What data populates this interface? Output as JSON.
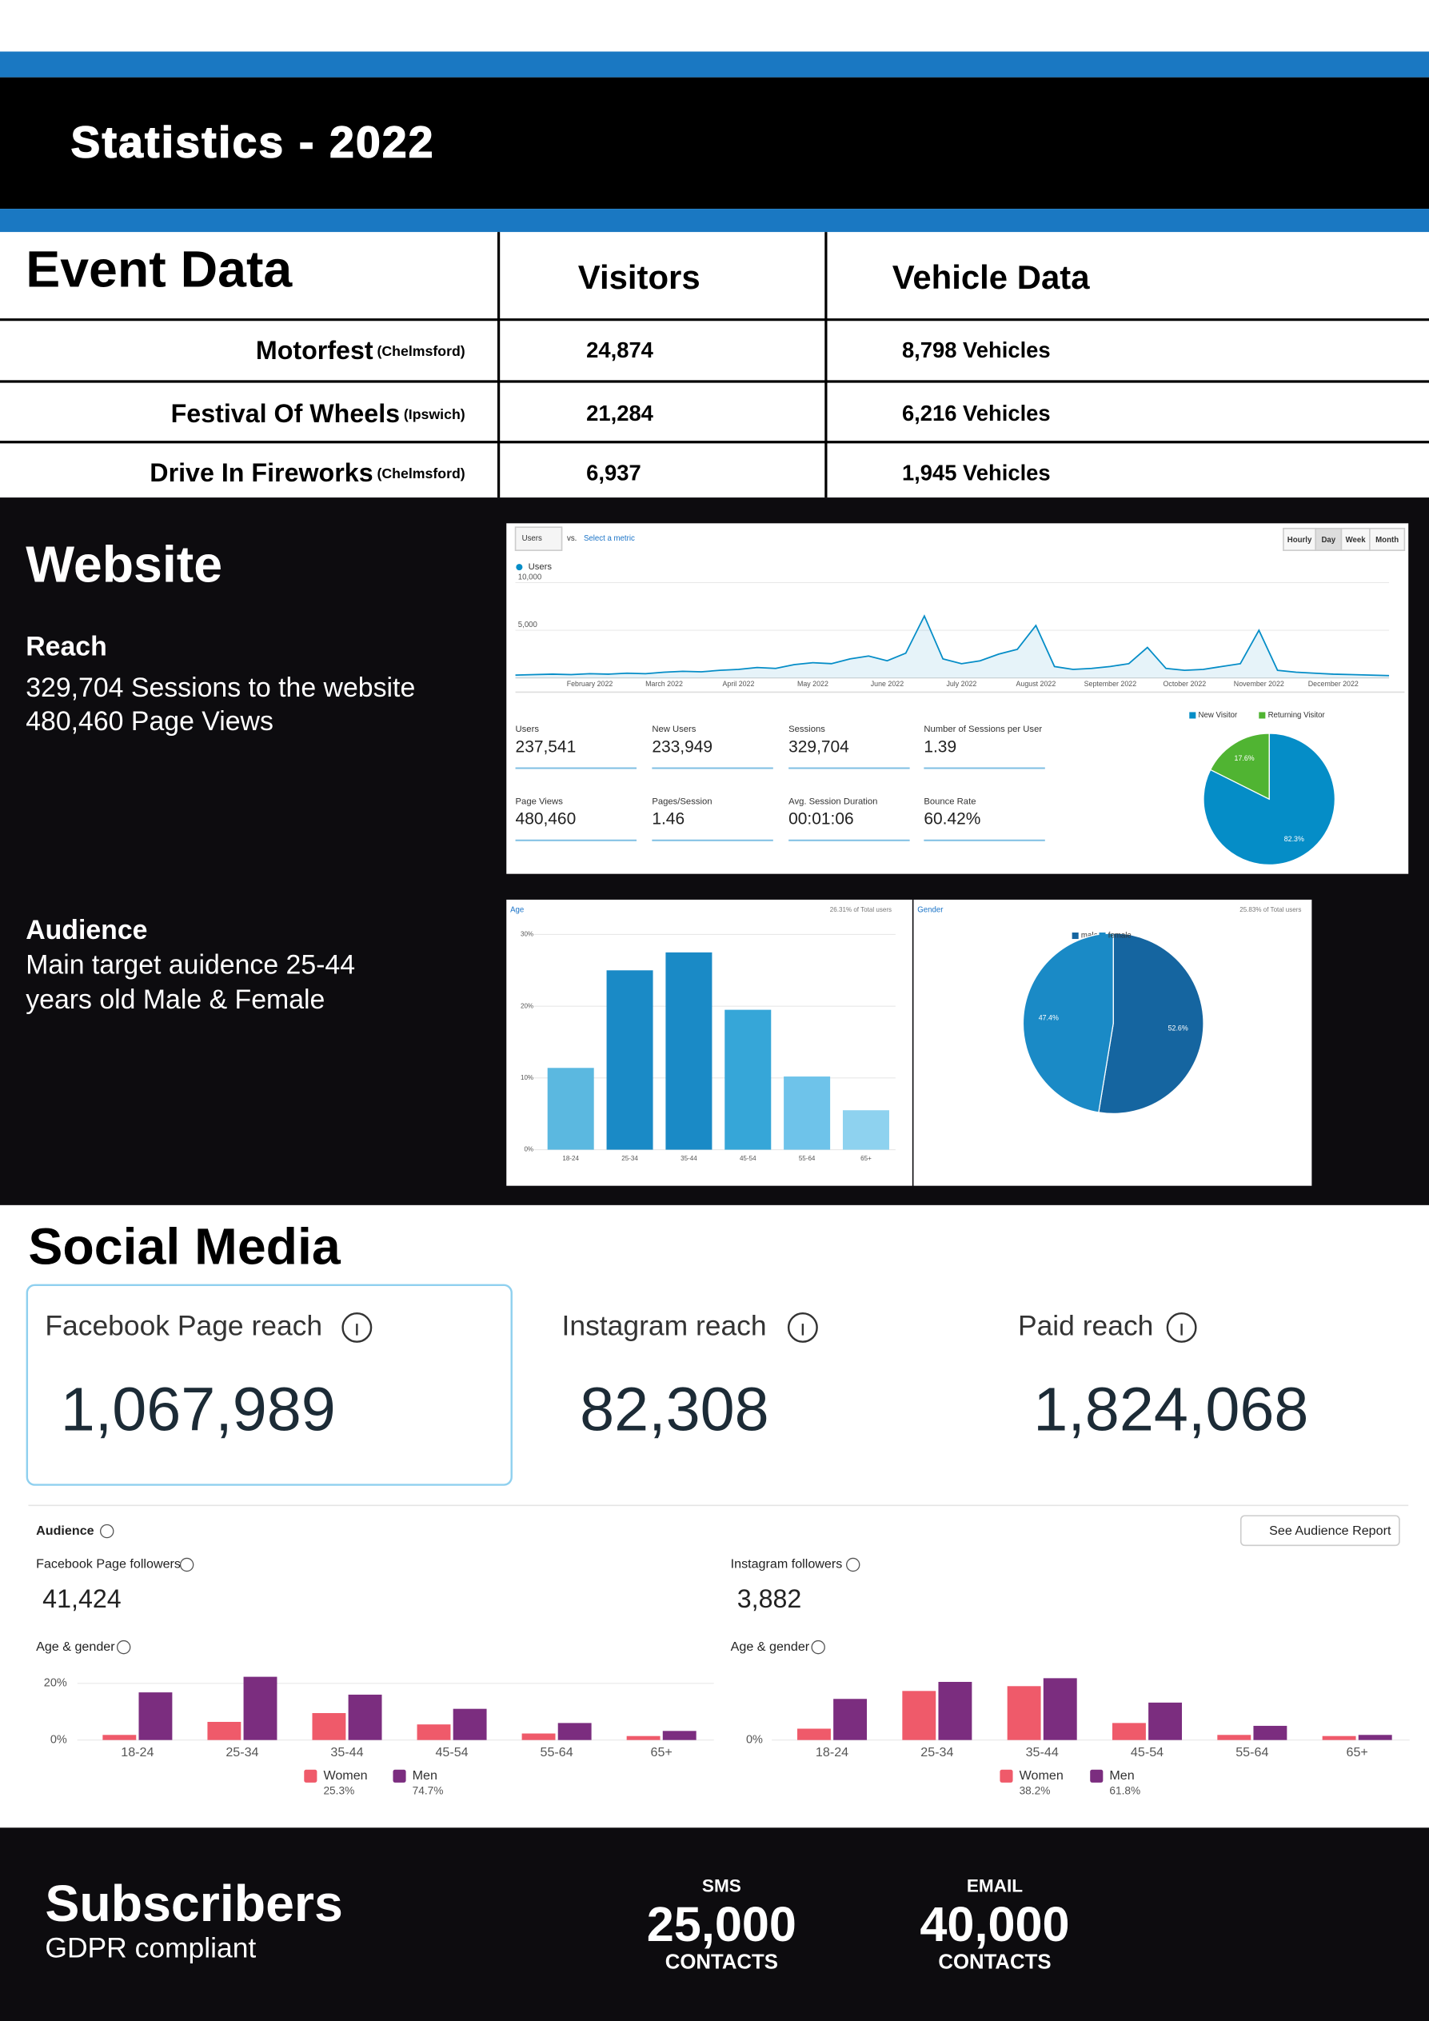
{
  "header": {
    "title": "Statistics - 2022"
  },
  "events": {
    "heading": "Event Data",
    "columns": [
      "Visitors",
      "Vehicle Data"
    ],
    "rows": [
      {
        "name": "Motorfest",
        "place": "(Chelmsford)",
        "visitors": "24,874",
        "vehicles": "8,798 Vehicles"
      },
      {
        "name": "Festival Of Wheels",
        "place": "(Ipswich)",
        "visitors": "21,284",
        "vehicles": "6,216 Vehicles"
      },
      {
        "name": "Drive In Fireworks",
        "place": "(Chelmsford)",
        "visitors": "6,937",
        "vehicles": "1,945 Vehicles"
      }
    ]
  },
  "website": {
    "heading": "Website",
    "reach": {
      "title": "Reach",
      "lines": [
        "329,704 Sessions to the website",
        "480,460 Page Views"
      ]
    },
    "audience": {
      "title": "Audience",
      "lines": [
        "Main target auidence 25-44",
        "years old Male & Female"
      ]
    }
  },
  "analytics": {
    "metric": "Users",
    "vs": "vs.",
    "select": "Select a metric",
    "periods": [
      "Hourly",
      "Day",
      "Week",
      "Month"
    ],
    "selected_period": "Day",
    "metrics": [
      {
        "label": "Users",
        "value": "237,541"
      },
      {
        "label": "New Users",
        "value": "233,949"
      },
      {
        "label": "Sessions",
        "value": "329,704"
      },
      {
        "label": "Number of Sessions per User",
        "value": "1.39"
      },
      {
        "label": "Page Views",
        "value": "480,460"
      },
      {
        "label": "Pages/Session",
        "value": "1.46"
      },
      {
        "label": "Avg. Session Duration",
        "value": "00:01:06"
      },
      {
        "label": "Bounce Rate",
        "value": "60.42%"
      }
    ]
  },
  "chart_data": [
    {
      "type": "line",
      "categories": [
        null,
        null,
        null,
        null,
        "February 2022",
        null,
        null,
        null,
        "March 2022",
        null,
        null,
        null,
        "April 2022",
        null,
        null,
        null,
        "May 2022",
        null,
        null,
        null,
        "June 2022",
        null,
        null,
        null,
        "July 2022",
        null,
        null,
        null,
        "August 2022",
        null,
        null,
        null,
        "September 2022",
        null,
        null,
        null,
        "October 2022",
        null,
        null,
        null,
        "November 2022",
        null,
        null,
        null,
        "December 2022",
        null,
        null,
        null
      ],
      "series": [
        {
          "name": "Users",
          "color": "#058dc7",
          "values": [
            300,
            350,
            400,
            350,
            450,
            400,
            500,
            450,
            600,
            700,
            650,
            800,
            900,
            1100,
            1000,
            1400,
            1600,
            1500,
            2000,
            2300,
            1800,
            2600,
            6500,
            2000,
            1500,
            1800,
            2500,
            3000,
            5500,
            1200,
            900,
            1000,
            1200,
            1500,
            3200,
            1000,
            800,
            900,
            1200,
            1500,
            5000,
            800,
            600,
            500,
            400,
            350,
            300,
            250
          ]
        }
      ],
      "ylim": [
        0,
        10000
      ],
      "yticks": [
        {
          "value": 5000,
          "label": "5,000"
        },
        {
          "value": 10000,
          "label": "10,000"
        }
      ],
      "grid": true
    },
    {
      "type": "pie",
      "categories": [
        "New Visitor",
        "Returning Visitor"
      ],
      "values": [
        82.3,
        17.6
      ],
      "value_labels": [
        "82.3%",
        "17.6%"
      ],
      "colors": [
        "#058dc7",
        "#50b432"
      ]
    },
    {
      "type": "bar",
      "title": "Age",
      "subtitle": "26.31% of Total users",
      "categories": [
        "18-24",
        "25-34",
        "35-44",
        "45-54",
        "55-64",
        "65+"
      ],
      "values": [
        11.4,
        25,
        27.5,
        19.5,
        10.2,
        5.5
      ],
      "colors": [
        "#5bb8e0",
        "#1a8ac6",
        "#1a8ac6",
        "#36a6d8",
        "#6ec3ea",
        "#8ed2ef"
      ],
      "ylim": [
        0,
        30
      ],
      "yticks": [
        {
          "value": 0,
          "label": "0%"
        },
        {
          "value": 10,
          "label": "10%"
        },
        {
          "value": 20,
          "label": "20%"
        },
        {
          "value": 30,
          "label": "30%"
        }
      ],
      "grid": true
    },
    {
      "type": "pie",
      "title": "Gender",
      "subtitle": "25.83% of Total users",
      "categories": [
        "male",
        "female"
      ],
      "values": [
        52.6,
        47.4
      ],
      "value_labels": [
        "52.6%",
        "47.4%"
      ],
      "colors": [
        "#1565a0",
        "#1a8ac6"
      ]
    },
    {
      "type": "bar",
      "categories": [
        "18-24",
        "25-34",
        "35-44",
        "45-54",
        "55-64",
        "65+"
      ],
      "series": [
        {
          "name": "Women",
          "share": "25.3%",
          "color": "#ef5a6a",
          "values": [
            1.8,
            6.4,
            9.5,
            5.5,
            2.3,
            1.4
          ]
        },
        {
          "name": "Men",
          "share": "74.7%",
          "color": "#7b2d7f",
          "values": [
            16.8,
            22.3,
            16,
            11,
            6,
            3.2
          ]
        }
      ],
      "ylim": [
        0,
        25
      ],
      "yticks": [
        {
          "value": 0,
          "label": "0%"
        },
        {
          "value": 20,
          "label": "20%"
        }
      ],
      "grid": true
    },
    {
      "type": "bar",
      "categories": [
        "18-24",
        "25-34",
        "35-44",
        "45-54",
        "55-64",
        "65+"
      ],
      "series": [
        {
          "name": "Women",
          "share": "38.2%",
          "color": "#ef5a6a",
          "values": [
            4,
            17.3,
            19,
            6,
            1.8,
            1.4
          ]
        },
        {
          "name": "Men",
          "share": "61.8%",
          "color": "#7b2d7f",
          "values": [
            14.5,
            20.5,
            21.8,
            13.2,
            5,
            1.8
          ]
        }
      ],
      "ylim": [
        0,
        25
      ],
      "yticks": [
        {
          "value": 0,
          "label": "0%"
        }
      ],
      "grid": true
    }
  ],
  "social": {
    "heading": "Social Media",
    "cards": [
      {
        "title": "Facebook Page reach",
        "value": "1,067,989"
      },
      {
        "title": "Instagram reach",
        "value": "82,308"
      },
      {
        "title": "Paid reach",
        "value": "1,824,068"
      }
    ],
    "audience": {
      "title": "Audience",
      "report_button": "See Audience Report",
      "panels": [
        {
          "label": "Facebook Page followers",
          "value": "41,424",
          "subtitle": "Age & gender"
        },
        {
          "label": "Instagram followers",
          "value": "3,882",
          "subtitle": "Age & gender"
        }
      ]
    }
  },
  "subscribers": {
    "heading": "Subscribers",
    "note": "GDPR compliant",
    "items": [
      {
        "label": "SMS",
        "value": "25,000",
        "unit": "CONTACTS"
      },
      {
        "label": "EMAIL",
        "value": "40,000",
        "unit": "CONTACTS"
      }
    ]
  }
}
